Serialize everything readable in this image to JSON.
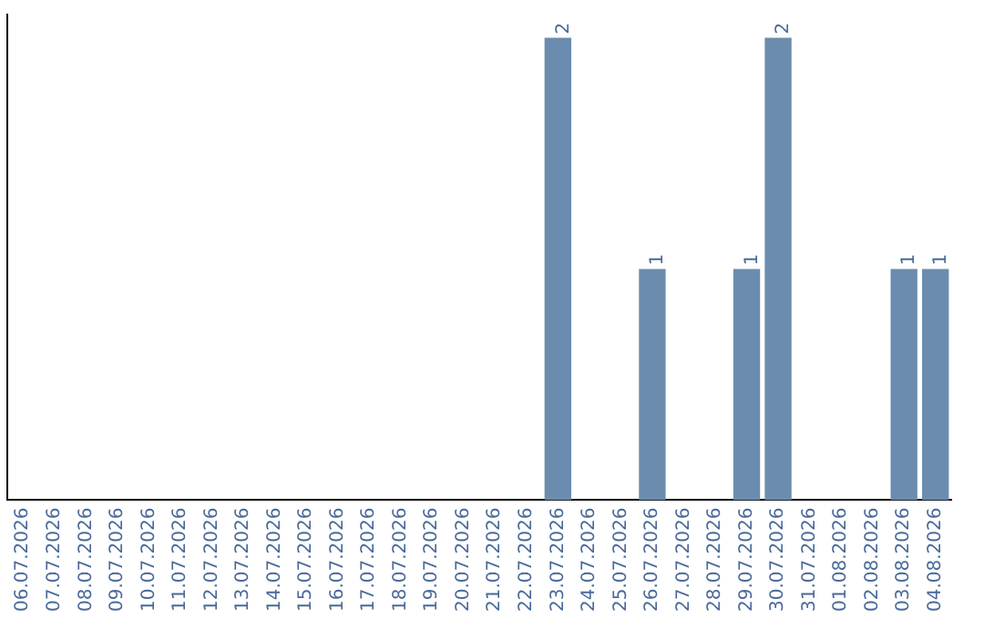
{
  "chart_data": {
    "type": "bar",
    "categories": [
      "06.07.2026",
      "07.07.2026",
      "08.07.2026",
      "09.07.2026",
      "10.07.2026",
      "11.07.2026",
      "12.07.2026",
      "13.07.2026",
      "14.07.2026",
      "15.07.2026",
      "16.07.2026",
      "17.07.2026",
      "18.07.2026",
      "19.07.2026",
      "20.07.2026",
      "21.07.2026",
      "22.07.2026",
      "23.07.2026",
      "24.07.2026",
      "25.07.2026",
      "26.07.2026",
      "27.07.2026",
      "28.07.2026",
      "29.07.2026",
      "30.07.2026",
      "31.07.2026",
      "01.08.2026",
      "02.08.2026",
      "03.08.2026",
      "04.08.2026"
    ],
    "values": [
      null,
      null,
      null,
      null,
      null,
      null,
      null,
      null,
      null,
      null,
      null,
      null,
      null,
      null,
      null,
      null,
      null,
      2,
      null,
      null,
      1,
      null,
      null,
      1,
      2,
      null,
      null,
      null,
      1,
      1
    ],
    "data_labels": true,
    "color": "#6b8cae",
    "ylim": [
      0,
      2.1
    ],
    "tick_labels": "x",
    "grid": false,
    "legend": false
  }
}
